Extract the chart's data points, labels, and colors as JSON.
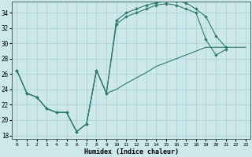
{
  "bg_color": "#cce8ea",
  "grid_color": "#aacdd4",
  "line_color": "#2d7a6e",
  "xlabel": "Humidex (Indice chaleur)",
  "xlim": [
    -0.5,
    23.5
  ],
  "ylim": [
    17.5,
    35.5
  ],
  "yticks": [
    18,
    20,
    22,
    24,
    26,
    28,
    30,
    32,
    34
  ],
  "xtick_labels": [
    "0",
    "1",
    "2",
    "3",
    "4",
    "5",
    "6",
    "7",
    "8",
    "9",
    "10",
    "11",
    "12",
    "13",
    "14",
    "15",
    "16",
    "17",
    "18",
    "19",
    "20",
    "21",
    "22",
    "23"
  ],
  "curve_top": [
    [
      0,
      26.5
    ],
    [
      1,
      23.5
    ],
    [
      2,
      23.0
    ],
    [
      3,
      21.5
    ],
    [
      4,
      21.0
    ],
    [
      5,
      21.0
    ],
    [
      6,
      18.5
    ],
    [
      7,
      19.5
    ],
    [
      8,
      26.5
    ],
    [
      9,
      23.5
    ],
    [
      10,
      33.0
    ],
    [
      11,
      34.0
    ],
    [
      12,
      34.5
    ],
    [
      13,
      35.0
    ],
    [
      14,
      35.3
    ],
    [
      15,
      35.5
    ],
    [
      16,
      35.5
    ],
    [
      17,
      35.3
    ],
    [
      18,
      34.5
    ],
    [
      19,
      33.5
    ],
    [
      20,
      31.0
    ],
    [
      21,
      29.5
    ]
  ],
  "curve_mid": [
    [
      0,
      26.5
    ],
    [
      1,
      23.5
    ],
    [
      2,
      23.0
    ],
    [
      3,
      21.5
    ],
    [
      4,
      21.0
    ],
    [
      5,
      21.0
    ],
    [
      6,
      18.5
    ],
    [
      7,
      19.5
    ],
    [
      8,
      26.5
    ],
    [
      9,
      23.5
    ],
    [
      10,
      32.5
    ],
    [
      11,
      33.5
    ],
    [
      12,
      34.0
    ],
    [
      13,
      34.5
    ],
    [
      14,
      35.0
    ],
    [
      15,
      35.2
    ],
    [
      16,
      35.0
    ],
    [
      17,
      34.5
    ],
    [
      18,
      34.0
    ],
    [
      19,
      30.5
    ],
    [
      20,
      28.5
    ],
    [
      21,
      29.2
    ]
  ],
  "curve_bot": [
    [
      0,
      26.5
    ],
    [
      1,
      23.5
    ],
    [
      2,
      23.0
    ],
    [
      3,
      21.5
    ],
    [
      4,
      21.0
    ],
    [
      5,
      21.0
    ],
    [
      6,
      18.5
    ],
    [
      7,
      19.5
    ],
    [
      8,
      26.5
    ],
    [
      9,
      23.5
    ],
    [
      10,
      24.0
    ],
    [
      11,
      24.8
    ],
    [
      12,
      25.5
    ],
    [
      13,
      26.2
    ],
    [
      14,
      27.0
    ],
    [
      15,
      27.5
    ],
    [
      16,
      28.0
    ],
    [
      17,
      28.5
    ],
    [
      18,
      29.0
    ],
    [
      19,
      29.5
    ],
    [
      20,
      29.5
    ],
    [
      21,
      29.5
    ],
    [
      22,
      29.5
    ],
    [
      23,
      29.5
    ]
  ]
}
